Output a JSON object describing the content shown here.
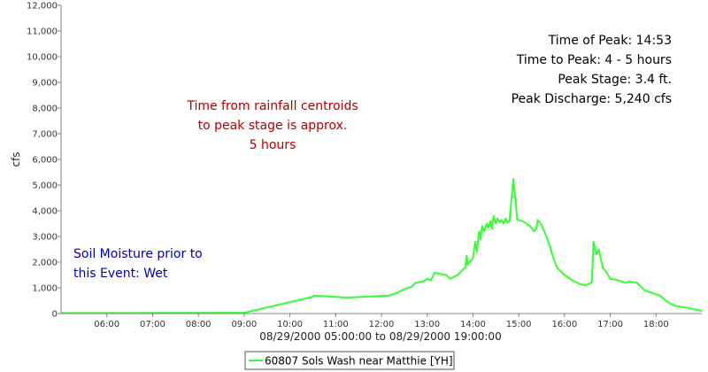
{
  "chart_data": {
    "type": "line",
    "title": "",
    "xlabel": "08/29/2000 05:00:00 to 08/29/2000 19:00:00",
    "ylabel": "cfs",
    "xlim": [
      "05:00",
      "19:00"
    ],
    "ylim": [
      0,
      12000
    ],
    "x_ticks": [
      "06:00",
      "07:00",
      "08:00",
      "09:00",
      "10:00",
      "11:00",
      "12:00",
      "13:00",
      "14:00",
      "15:00",
      "16:00",
      "17:00",
      "18:00"
    ],
    "y_ticks": [
      "0",
      "1,000",
      "2,000",
      "3,000",
      "4,000",
      "5,000",
      "6,000",
      "7,000",
      "8,000",
      "9,000",
      "10,000",
      "11,000",
      "12,000"
    ],
    "grid": false,
    "legend_position": "bottom-center",
    "series": [
      {
        "name": "60807 Sols Wash near Matthie [YH]",
        "color": "#33ff33",
        "points": [
          [
            "05:00",
            20
          ],
          [
            "09:00",
            30
          ],
          [
            "10:30",
            650
          ],
          [
            "10:31",
            700
          ],
          [
            "11:15",
            620
          ],
          [
            "12:10",
            700
          ],
          [
            "12:20",
            800
          ],
          [
            "12:30",
            950
          ],
          [
            "12:40",
            1050
          ],
          [
            "12:45",
            1200
          ],
          [
            "12:55",
            1250
          ],
          [
            "13:00",
            1350
          ],
          [
            "13:05",
            1300
          ],
          [
            "13:10",
            1600
          ],
          [
            "13:15",
            1550
          ],
          [
            "13:25",
            1500
          ],
          [
            "13:30",
            1350
          ],
          [
            "13:40",
            1500
          ],
          [
            "13:45",
            1650
          ],
          [
            "13:50",
            1800
          ],
          [
            "13:52",
            2250
          ],
          [
            "13:53",
            1900
          ],
          [
            "14:00",
            2150
          ],
          [
            "14:03",
            2800
          ],
          [
            "14:05",
            2400
          ],
          [
            "14:08",
            3200
          ],
          [
            "14:10",
            2900
          ],
          [
            "14:12",
            3400
          ],
          [
            "14:15",
            3200
          ],
          [
            "14:18",
            3500
          ],
          [
            "14:20",
            3350
          ],
          [
            "14:23",
            3600
          ],
          [
            "14:25",
            3300
          ],
          [
            "14:27",
            3800
          ],
          [
            "14:30",
            3500
          ],
          [
            "14:32",
            3700
          ],
          [
            "14:35",
            3550
          ],
          [
            "14:37",
            3650
          ],
          [
            "14:40",
            3500
          ],
          [
            "14:43",
            3700
          ],
          [
            "14:45",
            3550
          ],
          [
            "14:48",
            3600
          ],
          [
            "14:50",
            4300
          ],
          [
            "14:53",
            5240
          ],
          [
            "14:55",
            4600
          ],
          [
            "14:57",
            4000
          ],
          [
            "14:58",
            3650
          ],
          [
            "15:05",
            3600
          ],
          [
            "15:15",
            3400
          ],
          [
            "15:20",
            3200
          ],
          [
            "15:23",
            3300
          ],
          [
            "15:25",
            3650
          ],
          [
            "15:30",
            3450
          ],
          [
            "15:35",
            3100
          ],
          [
            "15:40",
            2700
          ],
          [
            "15:45",
            2200
          ],
          [
            "15:50",
            1800
          ],
          [
            "16:00",
            1500
          ],
          [
            "16:10",
            1300
          ],
          [
            "16:20",
            1150
          ],
          [
            "16:28",
            1100
          ],
          [
            "16:35",
            1200
          ],
          [
            "16:36",
            1300
          ],
          [
            "16:38",
            2800
          ],
          [
            "16:42",
            2300
          ],
          [
            "16:45",
            2500
          ],
          [
            "16:50",
            1800
          ],
          [
            "16:55",
            1600
          ],
          [
            "17:00",
            1350
          ],
          [
            "17:10",
            1300
          ],
          [
            "17:20",
            1200
          ],
          [
            "17:25",
            1250
          ],
          [
            "17:35",
            1200
          ],
          [
            "17:45",
            900
          ],
          [
            "17:55",
            800
          ],
          [
            "18:05",
            700
          ],
          [
            "18:15",
            450
          ],
          [
            "18:25",
            300
          ],
          [
            "18:45",
            200
          ],
          [
            "19:00",
            100
          ]
        ]
      }
    ],
    "annotations": {
      "peak_info": [
        "Time of Peak: 14:53",
        "Time to Peak: 4 - 5 hours",
        "Peak Stage: 3.4 ft.",
        "Peak Discharge: 5,240 cfs"
      ],
      "peak_info_color": "#000000",
      "centroid_note": [
        "Time from rainfall centroids",
        "to peak stage is approx.",
        "5 hours"
      ],
      "centroid_note_color": "#b00000",
      "soil_note": [
        "Soil Moisture prior to",
        "this Event: Wet"
      ],
      "soil_note_color": "#0000aa"
    }
  }
}
